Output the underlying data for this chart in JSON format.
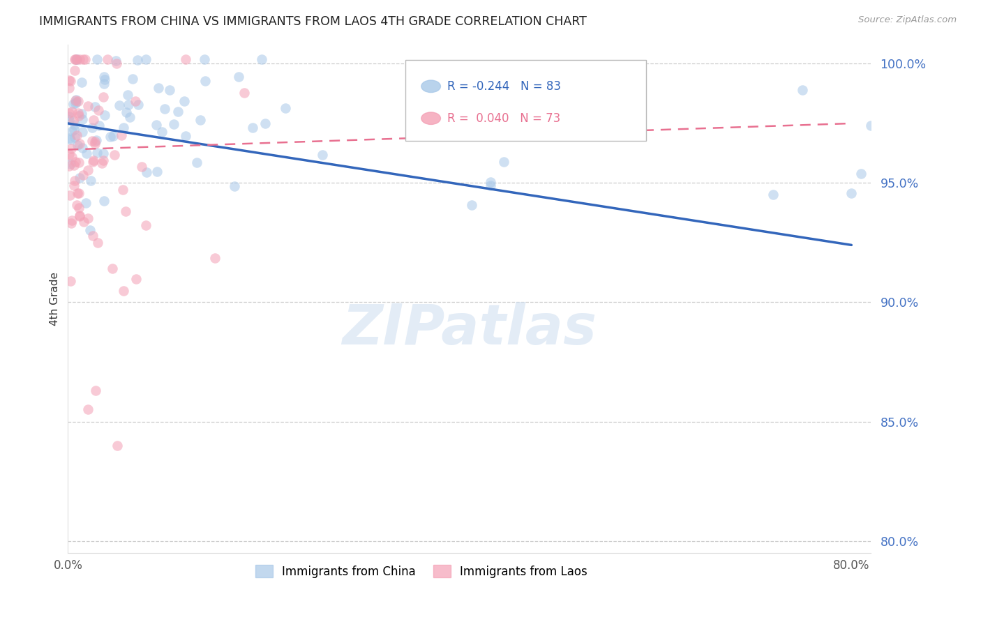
{
  "title": "IMMIGRANTS FROM CHINA VS IMMIGRANTS FROM LAOS 4TH GRADE CORRELATION CHART",
  "source_text": "Source: ZipAtlas.com",
  "ylabel": "4th Grade",
  "xlim": [
    0.0,
    0.82
  ],
  "ylim": [
    0.795,
    1.008
  ],
  "yticks": [
    0.8,
    0.85,
    0.9,
    0.95,
    1.0
  ],
  "yticklabels": [
    "80.0%",
    "85.0%",
    "90.0%",
    "95.0%",
    "100.0%"
  ],
  "china_scatter_color": "#a8c8e8",
  "laos_scatter_color": "#f4a0b5",
  "china_line_color": "#3366bb",
  "laos_line_color": "#e87090",
  "grid_color": "#cccccc",
  "background_color": "#ffffff",
  "watermark_text": "ZIPatlas",
  "china_R": -0.244,
  "china_N": 83,
  "laos_R": 0.04,
  "laos_N": 73,
  "china_line_x": [
    0.0,
    0.8
  ],
  "china_line_y": [
    0.975,
    0.924
  ],
  "laos_line_x": [
    0.0,
    0.8
  ],
  "laos_line_y": [
    0.964,
    0.975
  ]
}
